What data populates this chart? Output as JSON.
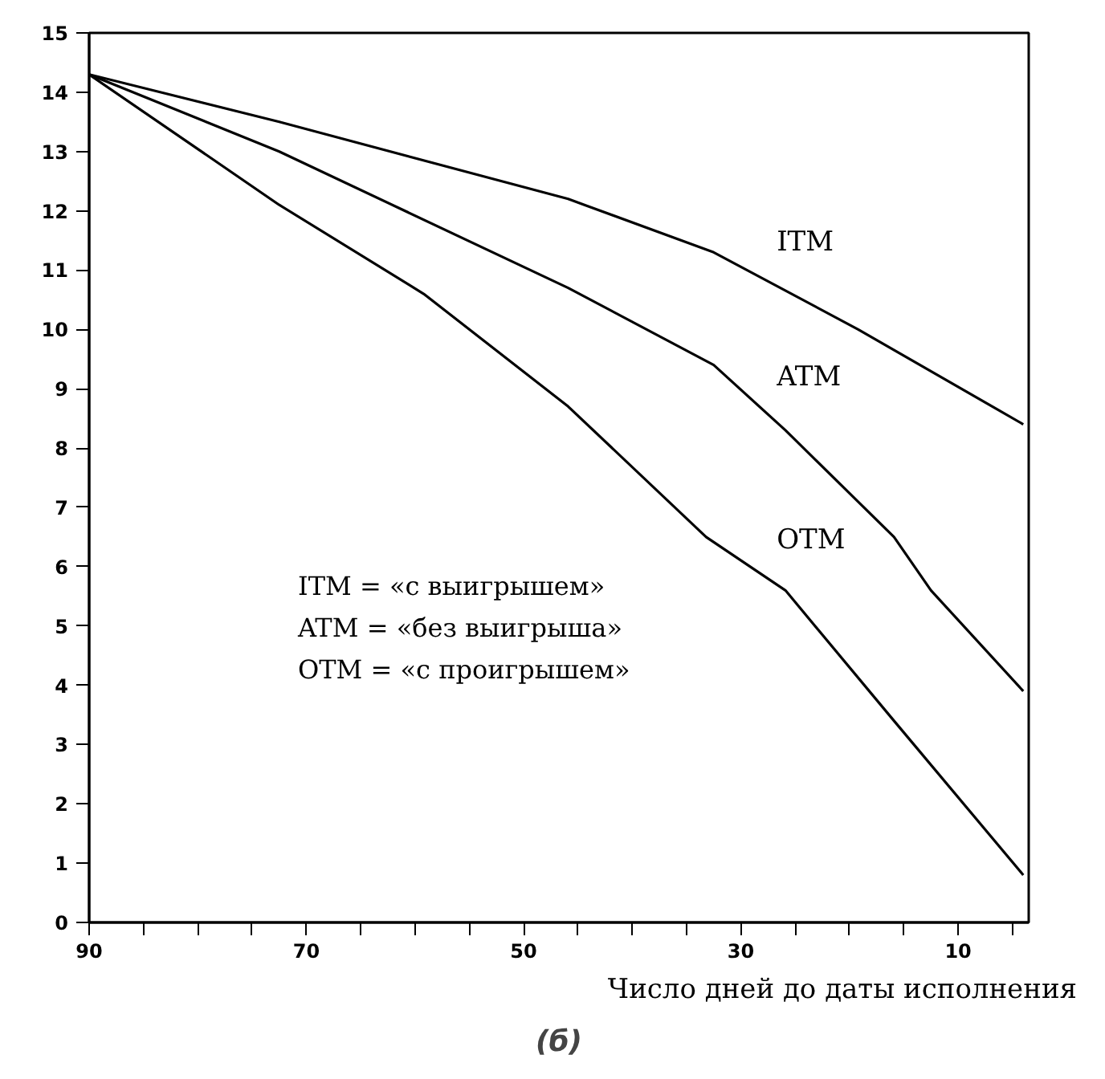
{
  "chart_data": {
    "type": "line",
    "title": "(б)",
    "xlabel": "Число дней до даты исполнения",
    "series": [
      {
        "name": "ITM",
        "color": "#000000",
        "x": [
          90,
          72.5,
          45.9,
          32.5,
          19.2,
          4
        ],
        "values": [
          14.3,
          13.5,
          12.2,
          11.3,
          10.0,
          8.4
        ]
      },
      {
        "name": "ATM",
        "color": "#000000",
        "x": [
          90,
          72.5,
          45.9,
          32.5,
          25.9,
          15.9,
          12.5,
          4
        ],
        "values": [
          14.3,
          13.0,
          10.7,
          9.4,
          8.3,
          6.5,
          5.6,
          3.9
        ]
      },
      {
        "name": "OTM",
        "color": "#000000",
        "x": [
          90,
          72.5,
          59.2,
          45.9,
          33.2,
          25.9,
          15.9,
          4
        ],
        "values": [
          14.3,
          12.1,
          10.6,
          8.7,
          6.5,
          5.6,
          3.4,
          0.8
        ]
      }
    ],
    "annotations": [
      "ITM = «с выигрышем»",
      "ATM = «без выигрыша»",
      "OTM = «с проигрышем»"
    ],
    "xlim": [
      90,
      3.5
    ],
    "ylim": [
      0,
      15
    ],
    "xticks": [
      90,
      {
        "value": 85,
        "label": null
      },
      {
        "value": 80,
        "label": null
      },
      {
        "value": 75,
        "label": null
      },
      70,
      {
        "value": 65,
        "label": null
      },
      {
        "value": 60,
        "label": null
      },
      {
        "value": 55,
        "label": null
      },
      50,
      {
        "value": 45,
        "label": null
      },
      {
        "value": 40,
        "label": null
      },
      {
        "value": 35,
        "label": null
      },
      30,
      {
        "value": 25,
        "label": null
      },
      {
        "value": 20,
        "label": null
      },
      {
        "value": 15,
        "label": null
      },
      10,
      {
        "value": 5,
        "label": null
      }
    ],
    "yticks": [
      0,
      1,
      2,
      3,
      4,
      5,
      6,
      7,
      8,
      9,
      10,
      11,
      12,
      13,
      14,
      15
    ],
    "grid": false,
    "marker": "none",
    "line_style": "solid"
  }
}
